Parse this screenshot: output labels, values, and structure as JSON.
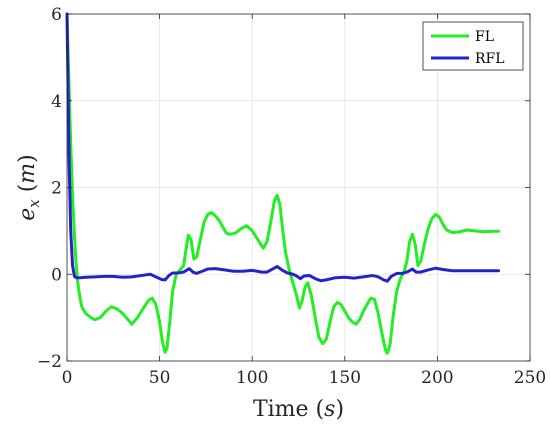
{
  "chart_data": {
    "type": "line",
    "title": "",
    "xlabel": "Time",
    "xlabel_unit": "s",
    "ylabel_base": "e",
    "ylabel_sub": "x",
    "ylabel_unit": "m",
    "xlim": [
      0,
      250
    ],
    "ylim": [
      -2,
      6
    ],
    "xticks": [
      0,
      50,
      100,
      150,
      200,
      250
    ],
    "yticks": [
      -2,
      0,
      2,
      4,
      6
    ],
    "xtick_labels": [
      "0",
      "50",
      "100",
      "150",
      "200",
      "250"
    ],
    "ytick_labels": [
      "−2",
      "0",
      "2",
      "4",
      "6"
    ],
    "grid": true,
    "legend_position": "top-right",
    "series": [
      {
        "name": "FL",
        "color": "#22ee22",
        "points": [
          [
            0,
            6.0
          ],
          [
            1,
            4.5
          ],
          [
            2,
            3.0
          ],
          [
            3,
            1.8
          ],
          [
            4,
            0.9
          ],
          [
            5,
            0.2
          ],
          [
            6,
            -0.25
          ],
          [
            7,
            -0.55
          ],
          [
            8,
            -0.75
          ],
          [
            10,
            -0.9
          ],
          [
            13,
            -1.0
          ],
          [
            15,
            -1.05
          ],
          [
            18,
            -1.0
          ],
          [
            21,
            -0.85
          ],
          [
            24,
            -0.75
          ],
          [
            27,
            -0.8
          ],
          [
            30,
            -0.9
          ],
          [
            33,
            -1.05
          ],
          [
            35,
            -1.15
          ],
          [
            38,
            -1.0
          ],
          [
            41,
            -0.8
          ],
          [
            44,
            -0.6
          ],
          [
            46,
            -0.55
          ],
          [
            48,
            -0.7
          ],
          [
            50,
            -1.1
          ],
          [
            51.5,
            -1.55
          ],
          [
            53,
            -1.8
          ],
          [
            54,
            -1.7
          ],
          [
            55.5,
            -1.1
          ],
          [
            57,
            -0.4
          ],
          [
            59,
            0.0
          ],
          [
            61,
            0.1
          ],
          [
            63,
            0.2
          ],
          [
            64,
            0.5
          ],
          [
            65.5,
            0.9
          ],
          [
            67,
            0.8
          ],
          [
            68.5,
            0.35
          ],
          [
            70,
            0.4
          ],
          [
            72,
            0.8
          ],
          [
            74,
            1.2
          ],
          [
            76,
            1.38
          ],
          [
            78,
            1.42
          ],
          [
            80,
            1.35
          ],
          [
            82,
            1.25
          ],
          [
            84,
            1.1
          ],
          [
            86,
            0.95
          ],
          [
            88,
            0.92
          ],
          [
            91,
            0.95
          ],
          [
            94,
            1.05
          ],
          [
            97,
            1.12
          ],
          [
            100,
            1.0
          ],
          [
            103,
            0.8
          ],
          [
            106,
            0.6
          ],
          [
            108,
            0.75
          ],
          [
            110,
            1.2
          ],
          [
            112,
            1.7
          ],
          [
            113.5,
            1.82
          ],
          [
            115,
            1.6
          ],
          [
            116.5,
            1.0
          ],
          [
            118,
            0.5
          ],
          [
            120,
            0.1
          ],
          [
            122,
            -0.2
          ],
          [
            124,
            -0.5
          ],
          [
            125.5,
            -0.78
          ],
          [
            127,
            -0.6
          ],
          [
            128.5,
            -0.3
          ],
          [
            130,
            -0.2
          ],
          [
            132,
            -0.5
          ],
          [
            134,
            -1.0
          ],
          [
            136,
            -1.45
          ],
          [
            138,
            -1.6
          ],
          [
            140,
            -1.5
          ],
          [
            142,
            -1.1
          ],
          [
            144,
            -0.75
          ],
          [
            146,
            -0.65
          ],
          [
            148,
            -0.7
          ],
          [
            150,
            -0.85
          ],
          [
            152,
            -1.0
          ],
          [
            154,
            -1.1
          ],
          [
            156,
            -1.15
          ],
          [
            158,
            -1.05
          ],
          [
            160,
            -0.85
          ],
          [
            162,
            -0.7
          ],
          [
            164,
            -0.55
          ],
          [
            166,
            -0.58
          ],
          [
            168,
            -0.9
          ],
          [
            170,
            -1.35
          ],
          [
            172,
            -1.75
          ],
          [
            173,
            -1.82
          ],
          [
            174.5,
            -1.6
          ],
          [
            176,
            -1.0
          ],
          [
            178,
            -0.4
          ],
          [
            180,
            -0.1
          ],
          [
            182,
            0.05
          ],
          [
            183.5,
            0.3
          ],
          [
            185,
            0.75
          ],
          [
            186.5,
            0.92
          ],
          [
            188,
            0.7
          ],
          [
            189.5,
            0.2
          ],
          [
            191,
            0.3
          ],
          [
            193,
            0.7
          ],
          [
            195,
            1.05
          ],
          [
            197,
            1.28
          ],
          [
            199,
            1.38
          ],
          [
            201,
            1.32
          ],
          [
            203,
            1.15
          ],
          [
            205,
            1.02
          ],
          [
            208,
            0.96
          ],
          [
            212,
            0.98
          ],
          [
            216,
            1.02
          ],
          [
            220,
            1.0
          ],
          [
            225,
            0.98
          ],
          [
            230,
            0.99
          ],
          [
            233,
            0.99
          ]
        ]
      },
      {
        "name": "RFL",
        "color": "#2323c8",
        "points": [
          [
            0,
            6.0
          ],
          [
            0.6,
            4.2
          ],
          [
            1.2,
            2.5
          ],
          [
            2,
            1.0
          ],
          [
            3,
            0.2
          ],
          [
            4,
            -0.05
          ],
          [
            5,
            -0.08
          ],
          [
            7,
            -0.08
          ],
          [
            10,
            -0.07
          ],
          [
            15,
            -0.06
          ],
          [
            20,
            -0.05
          ],
          [
            25,
            -0.05
          ],
          [
            30,
            -0.07
          ],
          [
            35,
            -0.06
          ],
          [
            40,
            -0.03
          ],
          [
            45,
            0.0
          ],
          [
            48,
            -0.06
          ],
          [
            51,
            -0.12
          ],
          [
            53,
            -0.13
          ],
          [
            55,
            -0.03
          ],
          [
            57,
            0.03
          ],
          [
            60,
            0.03
          ],
          [
            63,
            0.05
          ],
          [
            66,
            0.13
          ],
          [
            68,
            0.05
          ],
          [
            70,
            0.02
          ],
          [
            73,
            0.07
          ],
          [
            76,
            0.12
          ],
          [
            80,
            0.13
          ],
          [
            85,
            0.1
          ],
          [
            90,
            0.07
          ],
          [
            95,
            0.07
          ],
          [
            100,
            0.09
          ],
          [
            105,
            0.05
          ],
          [
            108,
            0.05
          ],
          [
            111,
            0.12
          ],
          [
            113.5,
            0.18
          ],
          [
            116,
            0.1
          ],
          [
            119,
            0.03
          ],
          [
            122,
            0.0
          ],
          [
            124,
            -0.04
          ],
          [
            126,
            -0.1
          ],
          [
            128,
            -0.04
          ],
          [
            131,
            -0.03
          ],
          [
            134,
            -0.1
          ],
          [
            137,
            -0.15
          ],
          [
            140,
            -0.13
          ],
          [
            145,
            -0.08
          ],
          [
            150,
            -0.07
          ],
          [
            155,
            -0.09
          ],
          [
            160,
            -0.06
          ],
          [
            165,
            -0.03
          ],
          [
            168,
            -0.06
          ],
          [
            171,
            -0.13
          ],
          [
            173,
            -0.16
          ],
          [
            175,
            -0.05
          ],
          [
            178,
            0.02
          ],
          [
            181,
            0.02
          ],
          [
            184,
            0.06
          ],
          [
            186.5,
            0.12
          ],
          [
            188.5,
            0.05
          ],
          [
            191,
            0.05
          ],
          [
            195,
            0.1
          ],
          [
            199,
            0.14
          ],
          [
            203,
            0.11
          ],
          [
            208,
            0.08
          ],
          [
            215,
            0.08
          ],
          [
            222,
            0.08
          ],
          [
            228,
            0.08
          ],
          [
            233,
            0.08
          ]
        ]
      }
    ]
  }
}
